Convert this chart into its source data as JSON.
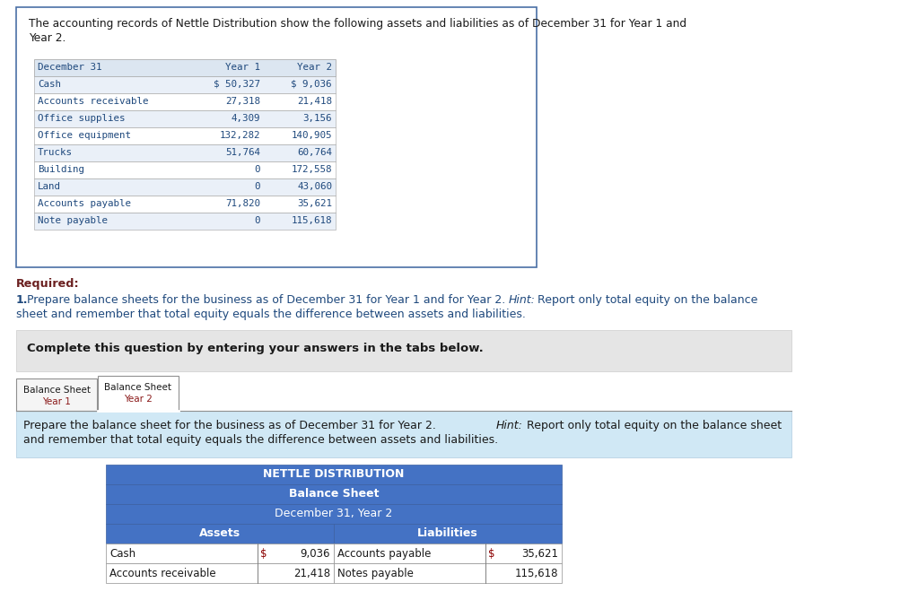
{
  "bg_color": "#ffffff",
  "intro_text_line1": "The accounting records of Nettle Distribution show the following assets and liabilities as of December 31 for Year 1 and",
  "intro_text_line2": "Year 2.",
  "table_header": [
    "December 31",
    "Year 1",
    "Year 2"
  ],
  "table_rows": [
    [
      "Cash",
      "$ 50,327",
      "$ 9,036"
    ],
    [
      "Accounts receivable",
      "27,318",
      "21,418"
    ],
    [
      "Office supplies",
      "4,309",
      "3,156"
    ],
    [
      "Office equipment",
      "132,282",
      "140,905"
    ],
    [
      "Trucks",
      "51,764",
      "60,764"
    ],
    [
      "Building",
      "0",
      "172,558"
    ],
    [
      "Land",
      "0",
      "43,060"
    ],
    [
      "Accounts payable",
      "71,820",
      "35,621"
    ],
    [
      "Note payable",
      "0",
      "115,618"
    ]
  ],
  "table_header_bg": "#dce6f1",
  "table_row_bg_alt": "#eaf0f8",
  "table_text_color": "#1f497d",
  "required_label": "Required:",
  "required_num": "1.",
  "required_text": " Prepare balance sheets for the business as of December 31 for Year 1 and for Year 2. ",
  "required_hint": "Hint:",
  "required_hint_rest": " Report only total equity on the balance sheet",
  "required_line2": "sheet and remember that total equity equals the difference between assets and liabilities.",
  "complete_text": "Complete this question by entering your answers in the tabs below.",
  "tab1_line1": "Balance Sheet",
  "tab1_line2": "Year 1",
  "tab2_line1": "Balance Sheet",
  "tab2_line2": "Year 2",
  "instruction_line1": "Prepare the balance sheet for the business as of December 31 for Year 2. ",
  "instruction_hint": "Hint:",
  "instruction_hint_rest": " Report only total equity on the balance sheet",
  "instruction_line2": "and remember that total equity equals the difference between assets and liabilities.",
  "bs_header_bg": "#4472c4",
  "bs_title1": "NETTLE DISTRIBUTION",
  "bs_title2": "Balance Sheet",
  "bs_title3": "December 31, Year 2",
  "bs_col1": "Assets",
  "bs_col2": "Liabilities",
  "bs_data_rows": [
    [
      "Cash",
      "$",
      "9,036",
      "Accounts payable",
      "$",
      "35,621"
    ],
    [
      "Accounts receivable",
      "",
      "21,418",
      "Notes payable",
      "",
      "115,618"
    ]
  ]
}
